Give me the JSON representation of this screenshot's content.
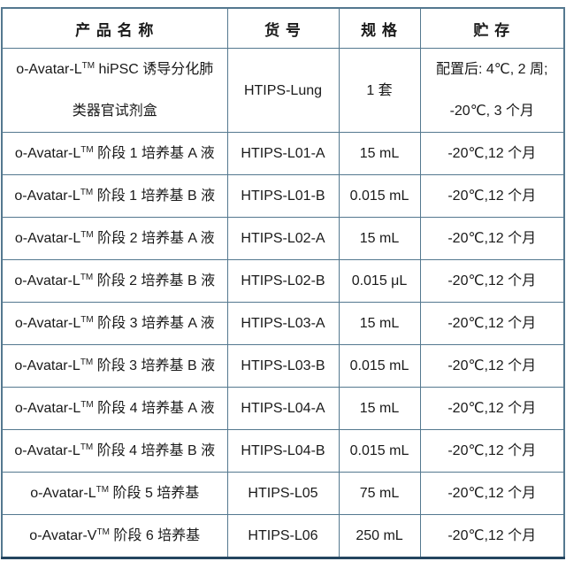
{
  "colors": {
    "border": "#54788f",
    "border_dark": "#24455f",
    "text": "#1a1a1a"
  },
  "table": {
    "headers": [
      "产 品 名 称",
      "货 号",
      "规 格",
      "贮 存"
    ],
    "rows": [
      {
        "name_pre": "o-Avatar-L",
        "name_sup": "TM",
        "name_rest": " hiPSC 诱导分化肺",
        "name_line2": "类器官试剂盒",
        "catalog": "HTIPS-Lung",
        "spec": "1 套",
        "storage_line1": "配置后: 4℃, 2 周;",
        "storage_line2": "-20℃, 3 个月"
      },
      {
        "name_pre": "o-Avatar-L",
        "name_sup": "TM",
        "name_rest": " 阶段 1 培养基 A 液",
        "name_line2": "",
        "catalog": "HTIPS-L01-A",
        "spec": "15 mL",
        "storage_line1": "-20℃,12 个月",
        "storage_line2": ""
      },
      {
        "name_pre": "o-Avatar-L",
        "name_sup": "TM",
        "name_rest": " 阶段 1 培养基 B 液",
        "name_line2": "",
        "catalog": "HTIPS-L01-B",
        "spec": "0.015 mL",
        "storage_line1": "-20℃,12 个月",
        "storage_line2": ""
      },
      {
        "name_pre": "o-Avatar-L",
        "name_sup": "TM",
        "name_rest": " 阶段 2 培养基 A 液",
        "name_line2": "",
        "catalog": "HTIPS-L02-A",
        "spec": "15 mL",
        "storage_line1": "-20℃,12 个月",
        "storage_line2": ""
      },
      {
        "name_pre": "o-Avatar-L",
        "name_sup": "TM",
        "name_rest": " 阶段 2 培养基 B 液",
        "name_line2": "",
        "catalog": "HTIPS-L02-B",
        "spec": "0.015 μL",
        "storage_line1": "-20℃,12 个月",
        "storage_line2": ""
      },
      {
        "name_pre": "o-Avatar-L",
        "name_sup": "TM",
        "name_rest": " 阶段 3 培养基 A 液",
        "name_line2": "",
        "catalog": "HTIPS-L03-A",
        "spec": "15 mL",
        "storage_line1": "-20℃,12 个月",
        "storage_line2": ""
      },
      {
        "name_pre": "o-Avatar-L",
        "name_sup": "TM",
        "name_rest": " 阶段 3 培养基 B 液",
        "name_line2": "",
        "catalog": "HTIPS-L03-B",
        "spec": "0.015 mL",
        "storage_line1": "-20℃,12 个月",
        "storage_line2": ""
      },
      {
        "name_pre": "o-Avatar-L",
        "name_sup": "TM",
        "name_rest": " 阶段 4 培养基 A 液",
        "name_line2": "",
        "catalog": "HTIPS-L04-A",
        "spec": "15 mL",
        "storage_line1": "-20℃,12 个月",
        "storage_line2": ""
      },
      {
        "name_pre": "o-Avatar-L",
        "name_sup": "TM",
        "name_rest": " 阶段 4 培养基 B 液",
        "name_line2": "",
        "catalog": "HTIPS-L04-B",
        "spec": "0.015 mL",
        "storage_line1": "-20℃,12 个月",
        "storage_line2": ""
      },
      {
        "name_pre": "o-Avatar-L",
        "name_sup": "TM",
        "name_rest": " 阶段 5 培养基",
        "name_line2": "",
        "catalog": "HTIPS-L05",
        "spec": "75 mL",
        "storage_line1": "-20℃,12 个月",
        "storage_line2": ""
      },
      {
        "name_pre": "o-Avatar-V",
        "name_sup": "TM",
        "name_rest": " 阶段 6 培养基",
        "name_line2": "",
        "catalog": "HTIPS-L06",
        "spec": "250 mL",
        "storage_line1": "-20℃,12 个月",
        "storage_line2": ""
      }
    ]
  }
}
